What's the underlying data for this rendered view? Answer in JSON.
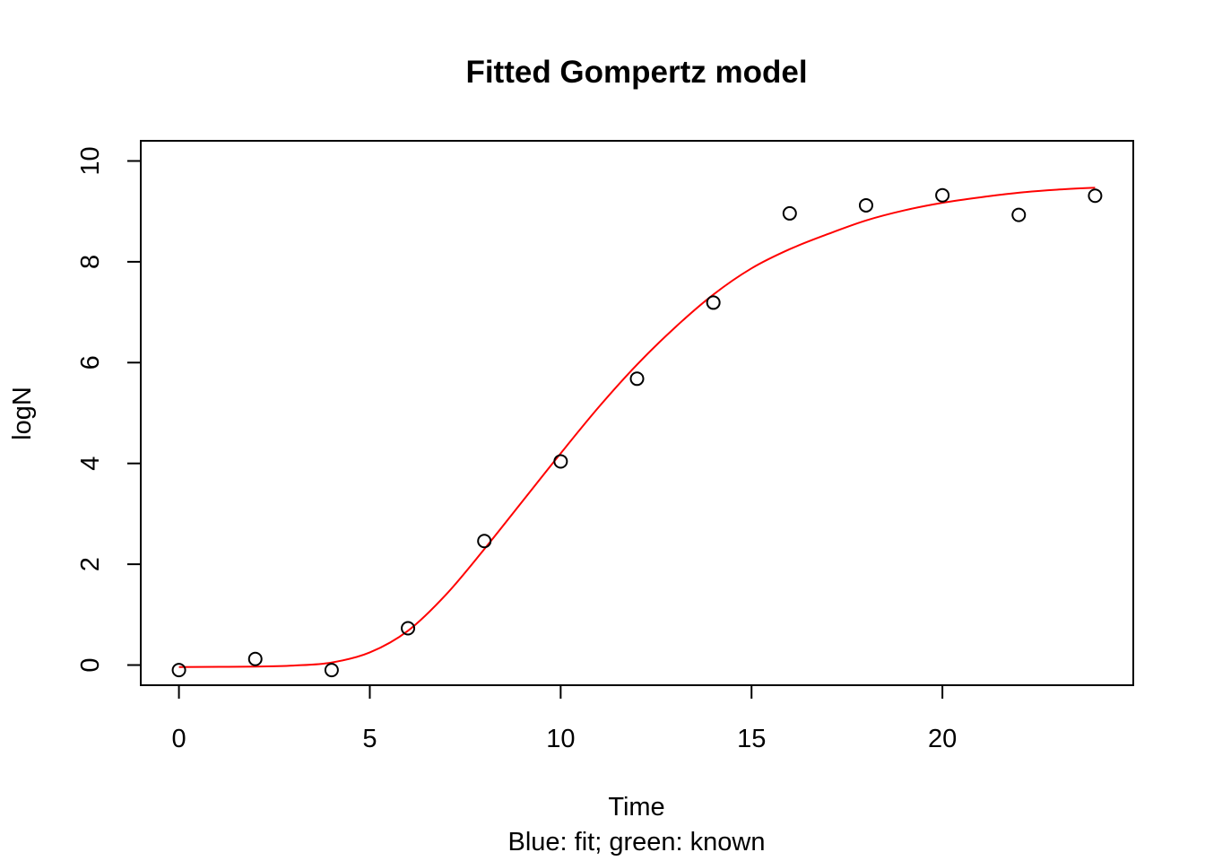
{
  "chart_data": {
    "type": "scatter",
    "title": "Fitted Gompertz model",
    "xlabel": "Time",
    "ylabel": "logN",
    "subtitle": "Blue: fit; green: known",
    "xlim": [
      -1,
      25
    ],
    "ylim": [
      -0.4,
      10.4
    ],
    "x_ticks": [
      0,
      5,
      10,
      15,
      20
    ],
    "y_ticks": [
      0,
      2,
      4,
      6,
      8,
      10
    ],
    "grid": false,
    "series": [
      {
        "type": "points",
        "marker": "open-circle",
        "color": "#000000",
        "x": [
          0,
          2,
          4,
          6,
          8,
          10,
          12,
          14,
          16,
          18,
          20,
          22,
          24
        ],
        "y": [
          -0.1,
          0.12,
          -0.1,
          0.73,
          2.46,
          4.04,
          5.68,
          7.19,
          8.96,
          9.12,
          9.32,
          8.93,
          9.31
        ]
      },
      {
        "type": "line",
        "color": "#ff0000",
        "x": [
          0,
          2,
          3,
          4,
          5,
          6,
          7,
          8,
          9,
          10,
          11,
          12,
          13,
          14,
          15,
          16,
          17,
          18,
          19,
          20,
          21,
          22,
          23,
          24
        ],
        "y": [
          -0.04,
          -0.03,
          -0.01,
          0.05,
          0.25,
          0.68,
          1.4,
          2.3,
          3.25,
          4.2,
          5.12,
          5.96,
          6.7,
          7.35,
          7.87,
          8.25,
          8.55,
          8.82,
          9.02,
          9.17,
          9.28,
          9.37,
          9.43,
          9.47
        ]
      }
    ]
  }
}
